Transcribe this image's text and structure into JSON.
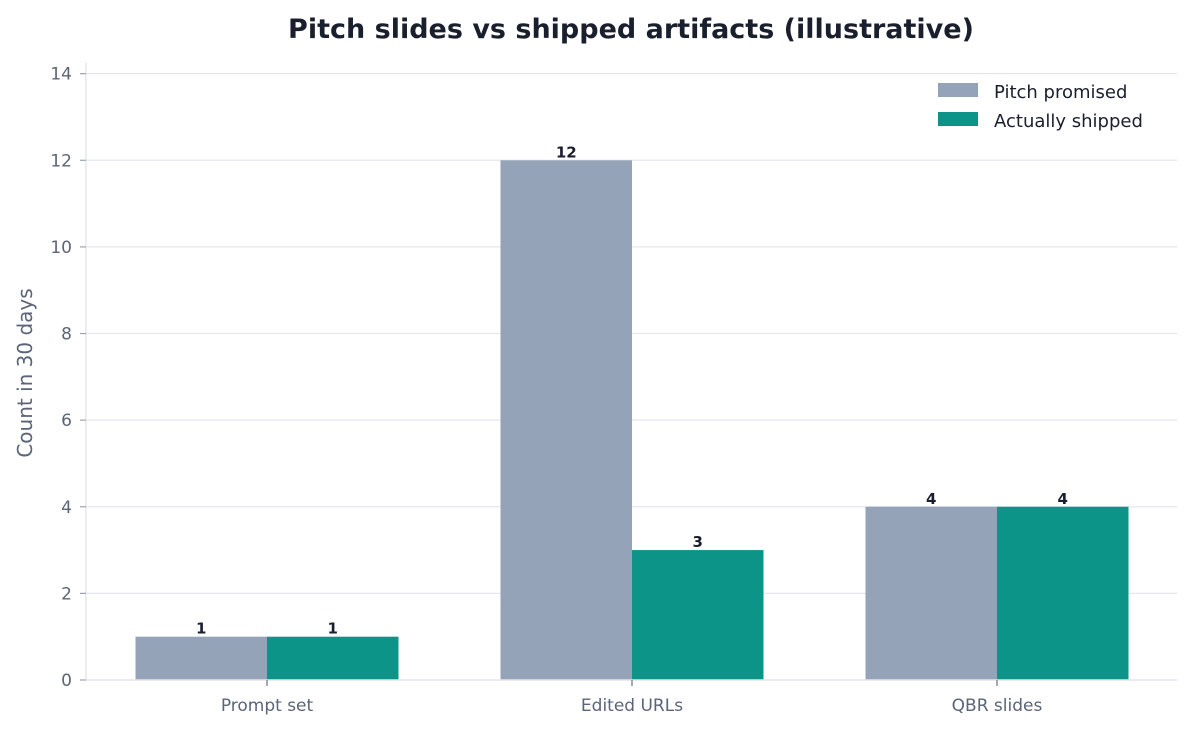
{
  "chart_data": {
    "type": "bar",
    "title": "Pitch slides vs shipped artifacts (illustrative)",
    "xlabel": "",
    "ylabel": "Count in 30 days",
    "categories": [
      "Prompt set",
      "Edited URLs",
      "QBR slides"
    ],
    "series": [
      {
        "name": "Pitch promised",
        "values": [
          1,
          12,
          4
        ],
        "color": "#94a3b8"
      },
      {
        "name": "Actually shipped",
        "values": [
          1,
          3,
          4
        ],
        "color": "#0d9488"
      }
    ],
    "ylim": [
      0,
      14.2
    ],
    "yticks": [
      0,
      2,
      4,
      6,
      8,
      10,
      12,
      14
    ],
    "grid": "horizontal",
    "legend_position": "top-right",
    "data_labels": true
  }
}
